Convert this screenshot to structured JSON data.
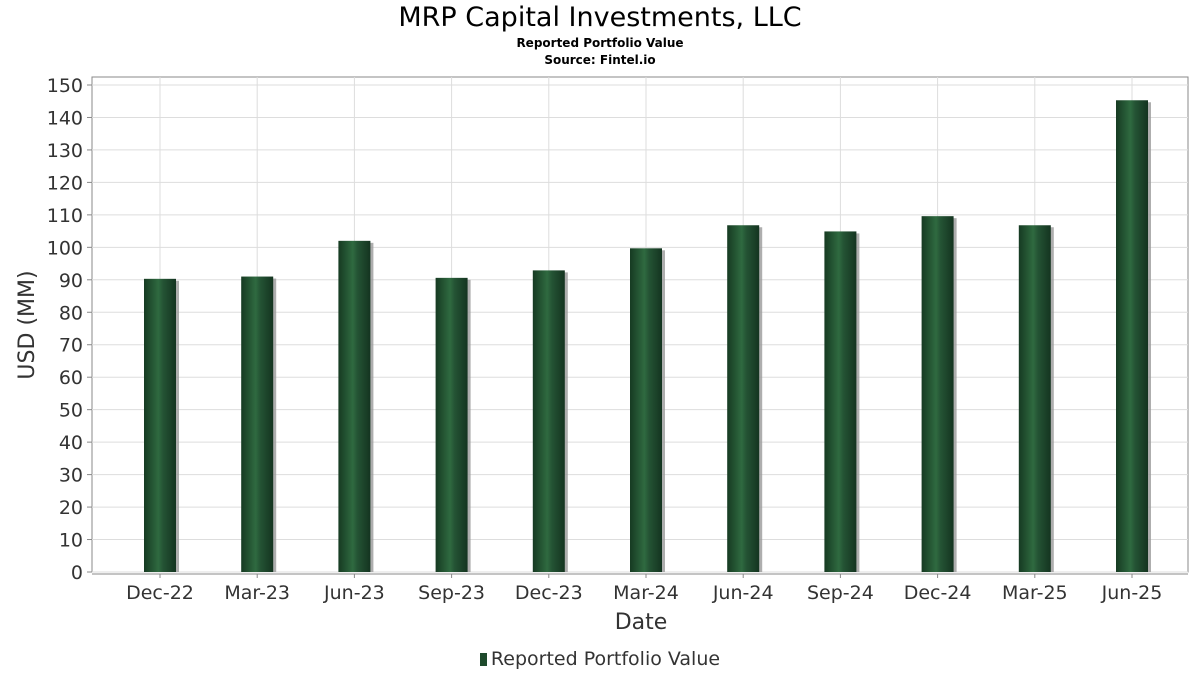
{
  "chart_data": {
    "type": "bar",
    "title": "MRP Capital Investments, LLC",
    "subtitle": "Reported Portfolio Value",
    "source": "Source: Fintel.io",
    "xlabel": "Date",
    "ylabel": "USD (MM)",
    "categories": [
      "Dec-22",
      "Mar-23",
      "Jun-23",
      "Sep-23",
      "Dec-23",
      "Mar-24",
      "Jun-24",
      "Sep-24",
      "Dec-24",
      "Mar-25",
      "Jun-25"
    ],
    "series": [
      {
        "name": "Reported Portfolio Value",
        "values": [
          90.3,
          91.0,
          102.0,
          90.6,
          92.9,
          99.7,
          106.8,
          104.9,
          109.6,
          106.8,
          145.3
        ]
      }
    ],
    "ylim": [
      0,
      150
    ],
    "yticks": [
      0,
      10,
      20,
      30,
      40,
      50,
      60,
      70,
      80,
      90,
      100,
      110,
      120,
      130,
      140,
      150
    ],
    "grid": true,
    "legend": "bottom",
    "colors": {
      "bar": "#1e4a2c",
      "bar_highlight": "#3a7a4c",
      "bar_shadow": "#9a9a9a",
      "grid": "#dddddd",
      "axis": "#888888"
    }
  }
}
